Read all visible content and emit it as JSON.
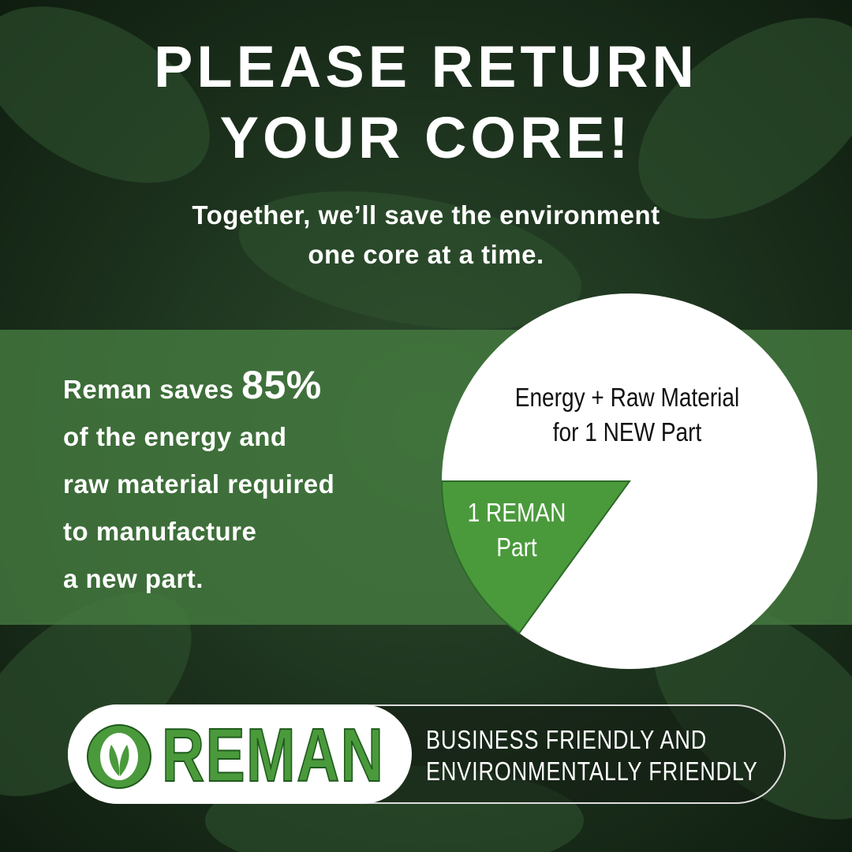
{
  "header": {
    "title_line1": "PLEASE RETURN",
    "title_line2": "YOUR CORE!",
    "subtitle_line1": "Together, we’ll save the environment",
    "subtitle_line2": "one core at a time."
  },
  "stat": {
    "prefix": "Reman saves ",
    "percent": "85%",
    "lines": [
      "of the energy and",
      "raw material required",
      "to manufacture",
      "a new part."
    ]
  },
  "pie": {
    "slices": [
      {
        "label_line1": "Energy + Raw Material",
        "label_line2": "for 1 NEW Part",
        "value": 85,
        "color": "#ffffff"
      },
      {
        "label_line1": "1 REMAN",
        "label_line2": "Part",
        "value": 15,
        "color": "#4a9a3c"
      }
    ]
  },
  "logo": {
    "brand": "REMAN",
    "tagline_line1": "BUSINESS FRIENDLY AND",
    "tagline_line2": "ENVIRONMENTALLY FRIENDLY",
    "color": "#4a9a3c"
  }
}
